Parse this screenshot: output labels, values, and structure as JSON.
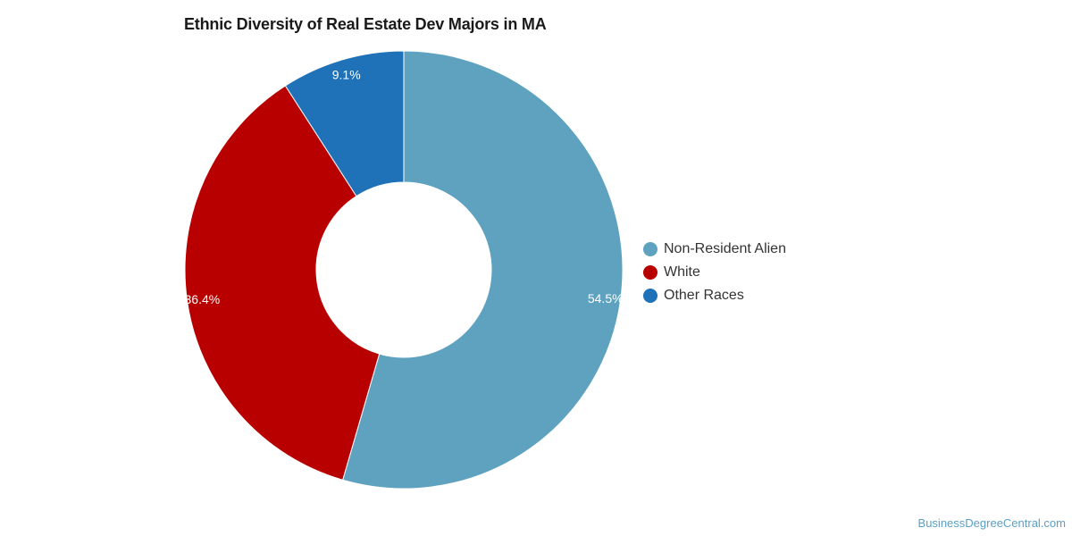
{
  "chart_data": {
    "type": "pie",
    "variant": "donut",
    "title": "Ethnic Diversity of Real Estate Dev Majors in MA",
    "slices": [
      {
        "name": "Non-Resident Alien",
        "value": 54.5,
        "label": "54.5%",
        "color": "#5ea2c0"
      },
      {
        "name": "White",
        "value": 36.4,
        "label": "36.4%",
        "color": "#b90000"
      },
      {
        "name": "Other Races",
        "value": 9.1,
        "label": "9.1%",
        "color": "#1f72b8"
      }
    ],
    "legend": {
      "position": "right"
    }
  },
  "watermark": "BusinessDegreeCentral.com"
}
